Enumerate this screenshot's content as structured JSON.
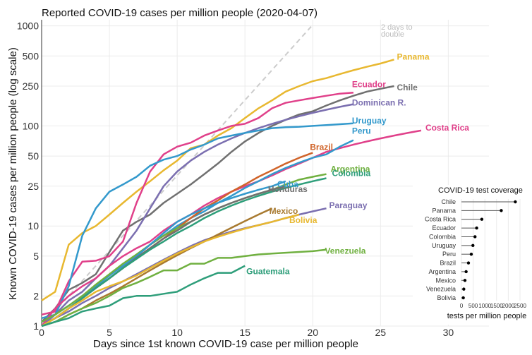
{
  "chart_data": [
    {
      "type": "line",
      "title": "Reported COVID-19 cases per million people (2020-04-07)",
      "xlabel": "Days since 1st known COVID-19 case per million people",
      "ylabel": "Known COVID-19 cases per million people (log scale)",
      "xlim": [
        0,
        33
      ],
      "ylim": [
        1,
        1150
      ],
      "yscale": "log",
      "xticks": [
        0,
        5,
        10,
        15,
        20,
        25,
        30
      ],
      "yticks": [
        1,
        2,
        5,
        10,
        25,
        50,
        100,
        250,
        500,
        1000
      ],
      "grid": true,
      "reference_line": {
        "label": "2 days to double",
        "x": [
          0,
          20
        ],
        "y": [
          1,
          1024
        ],
        "color": "#cccccc",
        "style": "dashed"
      },
      "series": [
        {
          "name": "Panama",
          "color": "#E8B830",
          "x": [
            0,
            1,
            2,
            3,
            4,
            5,
            6,
            7,
            8,
            9,
            10,
            11,
            12,
            13,
            14,
            15,
            16,
            17,
            18,
            19,
            20,
            21,
            22,
            23,
            24,
            25,
            26
          ],
          "y": [
            1.8,
            2.2,
            6.5,
            8.5,
            10,
            13,
            17,
            22,
            28,
            36,
            45,
            60,
            65,
            80,
            95,
            120,
            150,
            180,
            220,
            250,
            280,
            300,
            330,
            360,
            390,
            420,
            460
          ]
        },
        {
          "name": "Chile",
          "color": "#707070",
          "x": [
            0,
            1,
            2,
            3,
            4,
            5,
            6,
            7,
            8,
            9,
            10,
            11,
            12,
            13,
            14,
            15,
            16,
            17,
            18,
            19,
            20,
            21,
            22,
            23,
            24,
            25,
            26
          ],
          "y": [
            1.1,
            1.5,
            2.3,
            2.7,
            3.3,
            5.5,
            9,
            11,
            13,
            17,
            21,
            26,
            33,
            42,
            55,
            70,
            85,
            100,
            115,
            130,
            140,
            160,
            180,
            200,
            220,
            235,
            250
          ]
        },
        {
          "name": "Ecuador",
          "color": "#E0408A",
          "x": [
            0,
            1,
            2,
            3,
            4,
            5,
            6,
            7,
            8,
            9,
            10,
            11,
            12,
            13,
            14,
            15,
            16,
            17,
            18,
            19,
            20,
            21,
            22,
            23
          ],
          "y": [
            1.3,
            1.4,
            2.8,
            4.4,
            4.5,
            5,
            7,
            17,
            35,
            52,
            62,
            68,
            80,
            90,
            100,
            105,
            120,
            150,
            170,
            180,
            190,
            200,
            210,
            215
          ]
        },
        {
          "name": "Dominican R.",
          "color": "#7B6FB0",
          "x": [
            0,
            1,
            2,
            3,
            4,
            5,
            6,
            7,
            8,
            9,
            10,
            11,
            12,
            13,
            14,
            15,
            16,
            17,
            18,
            19,
            20,
            21,
            22,
            23
          ],
          "y": [
            1,
            1.3,
            1.8,
            2.2,
            3,
            4,
            6,
            9,
            15,
            25,
            35,
            45,
            55,
            65,
            75,
            85,
            95,
            105,
            115,
            125,
            135,
            145,
            155,
            165
          ]
        },
        {
          "name": "Uruguay",
          "color": "#3399CC",
          "x": [
            0,
            1,
            2,
            3,
            4,
            5,
            6,
            7,
            8,
            9,
            10,
            11,
            12,
            13,
            14,
            15,
            16,
            17,
            18,
            19,
            20,
            21,
            22,
            23
          ],
          "y": [
            1.2,
            1.3,
            2.5,
            8,
            15,
            22,
            26,
            31,
            40,
            46,
            50,
            58,
            65,
            75,
            80,
            85,
            90,
            95,
            97,
            98,
            100,
            102,
            104,
            106
          ]
        },
        {
          "name": "Costa Rica",
          "color": "#E0408A",
          "x": [
            0,
            1,
            2,
            3,
            4,
            5,
            6,
            7,
            8,
            9,
            10,
            11,
            12,
            13,
            14,
            15,
            16,
            17,
            18,
            19,
            20,
            21,
            22,
            23,
            24,
            25,
            26,
            27,
            28
          ],
          "y": [
            1,
            1.5,
            2,
            2.5,
            3,
            4,
            5,
            6,
            7,
            9,
            11,
            13,
            16,
            19,
            22,
            25,
            28,
            32,
            37,
            42,
            48,
            55,
            60,
            65,
            70,
            75,
            80,
            85,
            90
          ]
        },
        {
          "name": "Peru",
          "color": "#3399CC",
          "x": [
            0,
            1,
            2,
            3,
            4,
            5,
            6,
            7,
            8,
            9,
            10,
            11,
            12,
            13,
            14,
            15,
            16,
            17,
            18,
            19,
            20,
            21,
            22,
            23
          ],
          "y": [
            1.1,
            1.3,
            1.6,
            2,
            2.5,
            3.2,
            4,
            5,
            6.5,
            8,
            10,
            12,
            14,
            17,
            20,
            24,
            28,
            33,
            38,
            43,
            48,
            52,
            62,
            72
          ]
        },
        {
          "name": "Brazil",
          "color": "#D0642A",
          "x": [
            0,
            1,
            2,
            3,
            4,
            5,
            6,
            7,
            8,
            9,
            10,
            11,
            12,
            13,
            14,
            15,
            16,
            17,
            18,
            19,
            20
          ],
          "y": [
            1,
            1.2,
            1.5,
            1.9,
            2.4,
            3,
            3.8,
            4.8,
            6,
            7.5,
            9.5,
            12,
            15,
            18,
            22,
            26,
            31,
            36,
            42,
            48,
            54
          ]
        },
        {
          "name": "Argentina",
          "color": "#70B040",
          "x": [
            0,
            1,
            2,
            3,
            4,
            5,
            6,
            7,
            8,
            9,
            10,
            11,
            12,
            13,
            14,
            15,
            16,
            17,
            18,
            19,
            20,
            21
          ],
          "y": [
            1.1,
            1.3,
            1.6,
            2,
            2.6,
            3.3,
            4.2,
            5.2,
            6.5,
            8,
            9.5,
            11,
            13,
            15,
            17,
            19,
            21,
            23,
            26,
            29,
            31,
            33
          ]
        },
        {
          "name": "Cuba",
          "color": "#3399CC",
          "x": [
            0,
            1,
            2,
            3,
            4,
            5,
            6,
            7,
            8,
            9,
            10,
            11,
            12,
            13,
            14,
            15,
            16,
            17,
            18
          ],
          "y": [
            1,
            1.2,
            1.5,
            1.9,
            2.4,
            3,
            3.8,
            5,
            6.5,
            8.5,
            11,
            13,
            15,
            17,
            19,
            21,
            23,
            25,
            28
          ]
        },
        {
          "name": "Honduras",
          "color": "#707070",
          "x": [
            0,
            1,
            2,
            3,
            4,
            5,
            6,
            7,
            8,
            9,
            10,
            11,
            12,
            13,
            14,
            15,
            16,
            17,
            18
          ],
          "y": [
            1,
            1.2,
            1.5,
            1.9,
            2.4,
            3,
            3.8,
            4.8,
            6,
            7.5,
            9,
            11,
            13,
            15,
            17,
            19,
            21,
            23,
            25
          ]
        },
        {
          "name": "Colombia",
          "color": "#2E9E7A",
          "x": [
            0,
            1,
            2,
            3,
            4,
            5,
            6,
            7,
            8,
            9,
            10,
            11,
            12,
            13,
            14,
            15,
            16,
            17,
            18,
            19,
            20,
            21
          ],
          "y": [
            1,
            1.2,
            1.5,
            1.9,
            2.4,
            3,
            3.8,
            4.7,
            5.8,
            7,
            8.5,
            10,
            12,
            14,
            16,
            18,
            20,
            22,
            24,
            26,
            28,
            30
          ]
        },
        {
          "name": "Paraguay",
          "color": "#7B6FB0",
          "x": [
            0,
            1,
            2,
            3,
            4,
            5,
            6,
            7,
            8,
            9,
            10,
            11,
            12,
            13,
            14,
            15,
            16,
            17,
            18,
            19,
            20,
            21
          ],
          "y": [
            1,
            1.2,
            1.4,
            1.7,
            2,
            2.4,
            2.8,
            3.3,
            3.9,
            4.6,
            5.4,
            6.3,
            7.2,
            8,
            8.8,
            9.5,
            10.2,
            11,
            12,
            13,
            14,
            15
          ]
        },
        {
          "name": "Mexico",
          "color": "#A87A30",
          "x": [
            0,
            1,
            2,
            3,
            4,
            5,
            6,
            7,
            8,
            9,
            10,
            11,
            12,
            13,
            14,
            15,
            16,
            17
          ],
          "y": [
            1,
            1.1,
            1.3,
            1.5,
            1.8,
            2.1,
            2.5,
            3,
            3.6,
            4.3,
            5.1,
            6,
            7,
            8.2,
            9.6,
            11.2,
            13,
            15
          ]
        },
        {
          "name": "Bolivia",
          "color": "#E8B830",
          "x": [
            0,
            1,
            2,
            3,
            4,
            5,
            6,
            7,
            8,
            9,
            10,
            11,
            12,
            13,
            14,
            15,
            16,
            17,
            18,
            19
          ],
          "y": [
            1,
            1.2,
            1.5,
            1.8,
            2.2,
            2.5,
            2.8,
            3.2,
            3.8,
            4.5,
            5.3,
            6.1,
            7,
            7.8,
            8.6,
            9.4,
            10.2,
            11,
            12,
            13
          ]
        },
        {
          "name": "Venezuela",
          "color": "#70B040",
          "x": [
            0,
            1,
            2,
            3,
            4,
            5,
            6,
            7,
            8,
            9,
            10,
            11,
            12,
            13,
            14,
            15,
            16,
            17,
            18,
            19,
            20,
            21
          ],
          "y": [
            1,
            1.1,
            1.3,
            1.5,
            1.7,
            2,
            2.4,
            2.7,
            3.1,
            3.6,
            3.6,
            4.2,
            4.2,
            4.8,
            4.8,
            5,
            5.2,
            5.3,
            5.4,
            5.5,
            5.6,
            5.8
          ]
        },
        {
          "name": "Guatemala",
          "color": "#2E9E7A",
          "x": [
            0,
            1,
            2,
            3,
            4,
            5,
            6,
            7,
            8,
            9,
            10,
            11,
            12,
            13,
            14,
            15
          ],
          "y": [
            1,
            1.1,
            1.2,
            1.4,
            1.5,
            1.6,
            1.9,
            2,
            2,
            2.1,
            2.2,
            2.6,
            3,
            3.4,
            3.4,
            4
          ]
        }
      ]
    },
    {
      "type": "scatter",
      "title": "COVID-19 test coverage",
      "xlabel": "tests per million people",
      "xlim": [
        0,
        2500
      ],
      "xticks": [
        0,
        500,
        1000,
        1500,
        2000,
        2500
      ],
      "categories": [
        "Chile",
        "Panama",
        "Costa Rica",
        "Ecuador",
        "Colombia",
        "Uruguay",
        "Peru",
        "Brazil",
        "Argentina",
        "Mexico",
        "Venezuela",
        "Bolivia"
      ],
      "values": [
        2300,
        1700,
        870,
        650,
        580,
        490,
        420,
        300,
        200,
        150,
        100,
        80
      ]
    }
  ]
}
